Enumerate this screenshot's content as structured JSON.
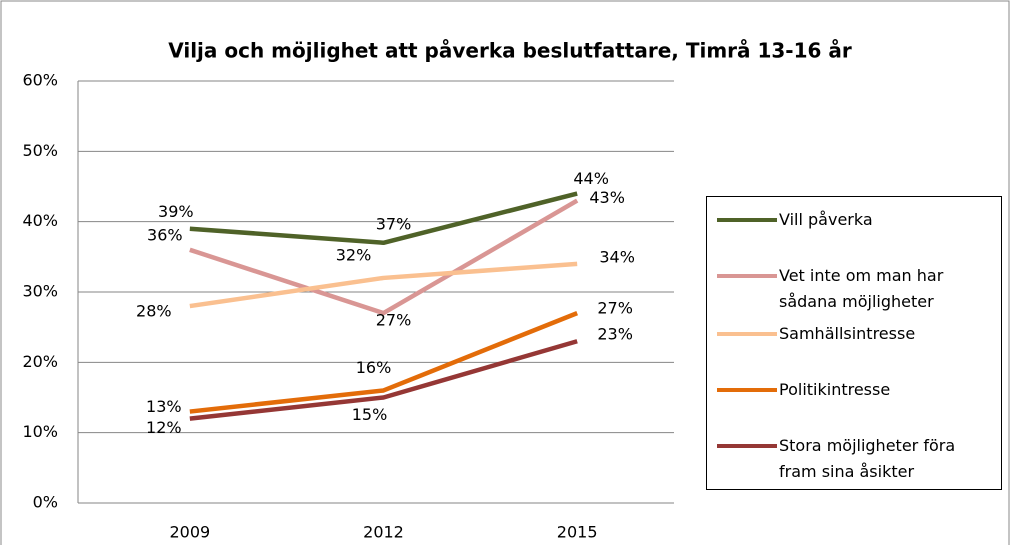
{
  "chart_data": {
    "type": "line",
    "title": "Vilja och möjlighet att påverka beslutfattare, Timrå 13-16 år",
    "categories": [
      "2009",
      "2012",
      "2015"
    ],
    "series": [
      {
        "name": "Vill påverka",
        "color": "#4f6228",
        "values": [
          39,
          37,
          44
        ],
        "value_labels": [
          "39%",
          "37%",
          "44%"
        ]
      },
      {
        "name": "Vet inte om man har sådana möjligheter",
        "color": "#d99694",
        "values": [
          36,
          27,
          43
        ],
        "value_labels": [
          "36%",
          "27%",
          "43%"
        ]
      },
      {
        "name": "Samhällsintresse",
        "color": "#fac090",
        "values": [
          28,
          32,
          34
        ],
        "value_labels": [
          "28%",
          "32%",
          "34%"
        ]
      },
      {
        "name": "Politikintresse",
        "color": "#e36c09",
        "values": [
          13,
          16,
          27
        ],
        "value_labels": [
          "13%",
          "16%",
          "27%"
        ]
      },
      {
        "name": "Stora möjligheter föra fram sina åsikter",
        "color": "#953735",
        "values": [
          12,
          15,
          23
        ],
        "value_labels": [
          "12%",
          "15%",
          "23%"
        ]
      }
    ],
    "ylim": [
      0,
      60
    ],
    "yticks": [
      {
        "value": 0,
        "label": "0%"
      },
      {
        "value": 10,
        "label": "10%"
      },
      {
        "value": 20,
        "label": "20%"
      },
      {
        "value": 30,
        "label": "30%"
      },
      {
        "value": 40,
        "label": "40%"
      },
      {
        "value": 50,
        "label": "50%"
      },
      {
        "value": 60,
        "label": "60%"
      }
    ],
    "grid": true,
    "legend": "right"
  }
}
